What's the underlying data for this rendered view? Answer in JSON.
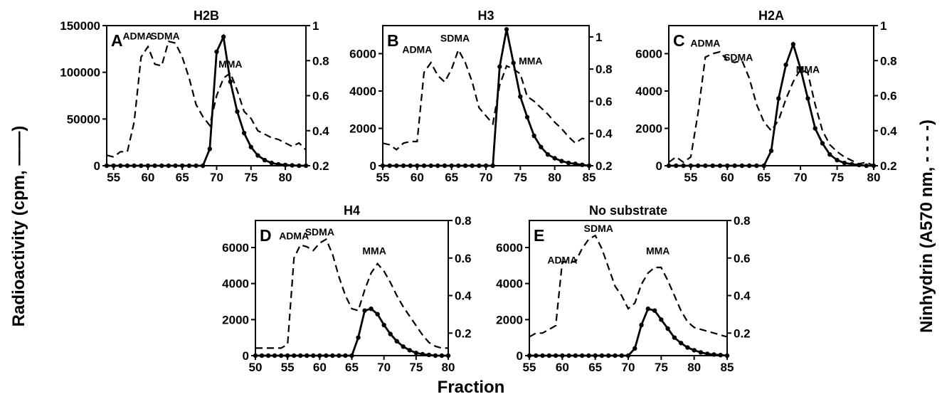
{
  "figure": {
    "y_left_label": "Radioactivity (cpm, ——)",
    "y_right_label": "Ninhydrin (A570 nm, - - - -)",
    "x_label": "Fraction"
  },
  "chart_data": [
    {
      "type": "line",
      "title": "H2B",
      "panel_label": "A",
      "xlim": [
        54,
        83
      ],
      "x_ticks": [
        55,
        60,
        65,
        70,
        75,
        80
      ],
      "y_left": {
        "lim": [
          0,
          150000
        ],
        "ticks": [
          0,
          50000,
          100000,
          150000
        ]
      },
      "y_right": {
        "lim": [
          0.2,
          1.0
        ],
        "ticks": [
          0.2,
          0.4,
          0.6,
          0.8,
          1.0
        ]
      },
      "annotations": [
        {
          "text": "ADMA",
          "x": 58.5,
          "y_right": 0.92
        },
        {
          "text": "SDMA",
          "x": 62.5,
          "y_right": 0.92
        },
        {
          "text": "MMA",
          "x": 72,
          "y_right": 0.76
        }
      ],
      "series": [
        {
          "axis": "left",
          "style": "solid-markers",
          "x": [
            54,
            55,
            56,
            57,
            58,
            59,
            60,
            61,
            62,
            63,
            64,
            65,
            66,
            67,
            68,
            69,
            70,
            71,
            72,
            73,
            74,
            75,
            76,
            77,
            78,
            79,
            80,
            81,
            82,
            83
          ],
          "values": [
            0,
            0,
            0,
            0,
            0,
            0,
            0,
            0,
            0,
            0,
            0,
            0,
            0,
            0,
            0,
            18000,
            122000,
            138000,
            90000,
            58000,
            35000,
            20000,
            11000,
            6000,
            3000,
            1500,
            800,
            400,
            0,
            0
          ]
        },
        {
          "axis": "right",
          "style": "dashed",
          "x": [
            54,
            55,
            56,
            57,
            58,
            59,
            60,
            61,
            62,
            63,
            64,
            65,
            66,
            67,
            68,
            69,
            70,
            71,
            72,
            73,
            74,
            75,
            76,
            77,
            78,
            79,
            80,
            81,
            82,
            83
          ],
          "values": [
            0.26,
            0.25,
            0.28,
            0.28,
            0.45,
            0.82,
            0.88,
            0.78,
            0.77,
            0.91,
            0.9,
            0.82,
            0.7,
            0.55,
            0.48,
            0.43,
            0.6,
            0.7,
            0.73,
            0.63,
            0.51,
            0.47,
            0.4,
            0.38,
            0.36,
            0.35,
            0.33,
            0.31,
            0.33,
            0.29
          ]
        }
      ]
    },
    {
      "type": "line",
      "title": "H3",
      "panel_label": "B",
      "xlim": [
        55,
        85
      ],
      "x_ticks": [
        55,
        60,
        65,
        70,
        75,
        80,
        85
      ],
      "y_left": {
        "lim": [
          0,
          7500
        ],
        "ticks": [
          0,
          2000,
          4000,
          6000
        ]
      },
      "y_right": {
        "lim": [
          0.2,
          1.07
        ],
        "ticks": [
          0.2,
          0.4,
          0.6,
          0.8,
          1.0
        ]
      },
      "annotations": [
        {
          "text": "ADMA",
          "x": 60,
          "y_right": 0.9
        },
        {
          "text": "SDMA",
          "x": 65.5,
          "y_right": 0.97
        },
        {
          "text": "MMA",
          "x": 76.5,
          "y_right": 0.83
        }
      ],
      "series": [
        {
          "axis": "left",
          "style": "solid-markers",
          "x": [
            55,
            56,
            57,
            58,
            59,
            60,
            61,
            62,
            63,
            64,
            65,
            66,
            67,
            68,
            69,
            70,
            71,
            72,
            73,
            74,
            75,
            76,
            77,
            78,
            79,
            80,
            81,
            82,
            83,
            84,
            85
          ],
          "values": [
            0,
            0,
            0,
            0,
            0,
            0,
            0,
            0,
            0,
            0,
            0,
            0,
            0,
            0,
            0,
            0,
            0,
            5300,
            7300,
            5500,
            3700,
            2600,
            1600,
            1000,
            600,
            400,
            250,
            150,
            100,
            50,
            0
          ]
        },
        {
          "axis": "right",
          "style": "dashed",
          "x": [
            55,
            56,
            57,
            58,
            59,
            60,
            61,
            62,
            63,
            64,
            65,
            66,
            67,
            68,
            69,
            70,
            71,
            72,
            73,
            74,
            75,
            76,
            77,
            78,
            79,
            80,
            81,
            82,
            83,
            84,
            85
          ],
          "values": [
            0.34,
            0.33,
            0.3,
            0.34,
            0.35,
            0.35,
            0.78,
            0.84,
            0.76,
            0.72,
            0.8,
            0.92,
            0.84,
            0.72,
            0.56,
            0.51,
            0.46,
            0.7,
            0.82,
            0.8,
            0.77,
            0.63,
            0.6,
            0.56,
            0.52,
            0.47,
            0.43,
            0.38,
            0.34,
            0.37,
            0.36
          ]
        }
      ]
    },
    {
      "type": "line",
      "title": "H2A",
      "panel_label": "C",
      "xlim": [
        52,
        80
      ],
      "x_ticks": [
        55,
        60,
        65,
        70,
        75,
        80
      ],
      "y_left": {
        "lim": [
          0,
          7500
        ],
        "ticks": [
          0,
          2000,
          4000,
          6000
        ]
      },
      "y_right": {
        "lim": [
          0.2,
          1.0
        ],
        "ticks": [
          0.2,
          0.4,
          0.6,
          0.8,
          1.0
        ]
      },
      "annotations": [
        {
          "text": "ADMA",
          "x": 57,
          "y_right": 0.88
        },
        {
          "text": "SDMA",
          "x": 61.5,
          "y_right": 0.8
        },
        {
          "text": "MMA",
          "x": 71,
          "y_right": 0.73
        }
      ],
      "series": [
        {
          "axis": "left",
          "style": "solid-markers",
          "x": [
            52,
            53,
            54,
            55,
            56,
            57,
            58,
            59,
            60,
            61,
            62,
            63,
            64,
            65,
            66,
            67,
            68,
            69,
            70,
            71,
            72,
            73,
            74,
            75,
            76,
            77,
            78,
            79,
            80
          ],
          "values": [
            0,
            0,
            0,
            0,
            0,
            0,
            0,
            0,
            0,
            0,
            0,
            0,
            0,
            0,
            800,
            3600,
            5400,
            6500,
            5200,
            3600,
            2000,
            1200,
            600,
            300,
            150,
            80,
            40,
            0,
            0
          ]
        },
        {
          "axis": "right",
          "style": "dashed",
          "x": [
            52,
            53,
            54,
            55,
            56,
            57,
            58,
            59,
            60,
            61,
            62,
            63,
            64,
            65,
            66,
            67,
            68,
            69,
            70,
            71,
            72,
            73,
            74,
            75,
            76,
            77,
            78,
            79,
            80
          ],
          "values": [
            0.22,
            0.25,
            0.22,
            0.25,
            0.5,
            0.82,
            0.84,
            0.85,
            0.8,
            0.79,
            0.8,
            0.7,
            0.55,
            0.45,
            0.4,
            0.46,
            0.58,
            0.68,
            0.75,
            0.73,
            0.55,
            0.4,
            0.32,
            0.28,
            0.25,
            0.23,
            0.21,
            0.22,
            0.2
          ]
        }
      ]
    },
    {
      "type": "line",
      "title": "H4",
      "panel_label": "D",
      "xlim": [
        50,
        80
      ],
      "x_ticks": [
        50,
        55,
        60,
        65,
        70,
        75,
        80
      ],
      "y_left": {
        "lim": [
          0,
          7500
        ],
        "ticks": [
          0,
          2000,
          4000,
          6000
        ]
      },
      "y_right": {
        "lim": [
          0.08,
          0.8
        ],
        "ticks": [
          0.2,
          0.4,
          0.6,
          0.8
        ]
      },
      "annotations": [
        {
          "text": "ADMA",
          "x": 56,
          "y_right": 0.7
        },
        {
          "text": "SDMA",
          "x": 60,
          "y_right": 0.72
        },
        {
          "text": "MMA",
          "x": 68.5,
          "y_right": 0.62
        }
      ],
      "series": [
        {
          "axis": "left",
          "style": "solid-markers",
          "x": [
            50,
            51,
            52,
            53,
            54,
            55,
            56,
            57,
            58,
            59,
            60,
            61,
            62,
            63,
            64,
            65,
            66,
            67,
            68,
            69,
            70,
            71,
            72,
            73,
            74,
            75,
            76,
            77,
            78,
            79,
            80
          ],
          "values": [
            0,
            0,
            0,
            0,
            0,
            0,
            0,
            0,
            0,
            0,
            0,
            0,
            0,
            0,
            0,
            0,
            1000,
            2500,
            2600,
            2300,
            1700,
            1200,
            800,
            500,
            300,
            150,
            80,
            40,
            0,
            0,
            0
          ]
        },
        {
          "axis": "right",
          "style": "dashed",
          "x": [
            50,
            51,
            52,
            53,
            54,
            55,
            56,
            57,
            58,
            59,
            60,
            61,
            62,
            63,
            64,
            65,
            66,
            67,
            68,
            69,
            70,
            71,
            72,
            73,
            74,
            75,
            76,
            77,
            78,
            79,
            80
          ],
          "values": [
            0.12,
            0.12,
            0.12,
            0.12,
            0.12,
            0.14,
            0.6,
            0.67,
            0.66,
            0.64,
            0.68,
            0.7,
            0.62,
            0.5,
            0.4,
            0.33,
            0.32,
            0.43,
            0.52,
            0.57,
            0.53,
            0.47,
            0.4,
            0.34,
            0.29,
            0.24,
            0.19,
            0.15,
            0.13,
            0.12,
            0.12
          ]
        }
      ]
    },
    {
      "type": "line",
      "title": "No substrate",
      "panel_label": "E",
      "xlim": [
        55,
        85
      ],
      "x_ticks": [
        55,
        60,
        65,
        70,
        75,
        80,
        85
      ],
      "y_left": {
        "lim": [
          0,
          7500
        ],
        "ticks": [
          0,
          2000,
          4000,
          6000
        ]
      },
      "y_right": {
        "lim": [
          0.08,
          0.8
        ],
        "ticks": [
          0.2,
          0.4,
          0.6,
          0.8
        ]
      },
      "annotations": [
        {
          "text": "ADMA",
          "x": 60,
          "y_right": 0.57
        },
        {
          "text": "SDMA",
          "x": 65.5,
          "y_right": 0.74
        },
        {
          "text": "MMA",
          "x": 74.5,
          "y_right": 0.62
        }
      ],
      "series": [
        {
          "axis": "left",
          "style": "solid-markers",
          "x": [
            55,
            56,
            57,
            58,
            59,
            60,
            61,
            62,
            63,
            64,
            65,
            66,
            67,
            68,
            69,
            70,
            71,
            72,
            73,
            74,
            75,
            76,
            77,
            78,
            79,
            80,
            81,
            82,
            83,
            84,
            85
          ],
          "values": [
            0,
            0,
            0,
            0,
            0,
            0,
            0,
            0,
            0,
            0,
            0,
            0,
            0,
            0,
            0,
            0,
            400,
            1700,
            2600,
            2500,
            2000,
            1500,
            1000,
            700,
            450,
            300,
            180,
            100,
            60,
            30,
            0
          ]
        },
        {
          "axis": "right",
          "style": "dashed",
          "x": [
            55,
            56,
            57,
            58,
            59,
            60,
            61,
            62,
            63,
            64,
            65,
            66,
            67,
            68,
            69,
            70,
            71,
            72,
            73,
            74,
            75,
            76,
            77,
            78,
            79,
            80,
            81,
            82,
            83,
            84,
            85
          ],
          "values": [
            0.18,
            0.2,
            0.2,
            0.22,
            0.24,
            0.58,
            0.58,
            0.58,
            0.65,
            0.7,
            0.72,
            0.65,
            0.55,
            0.45,
            0.4,
            0.33,
            0.36,
            0.46,
            0.52,
            0.55,
            0.55,
            0.48,
            0.4,
            0.32,
            0.26,
            0.23,
            0.22,
            0.21,
            0.2,
            0.19,
            0.18
          ]
        }
      ]
    }
  ]
}
